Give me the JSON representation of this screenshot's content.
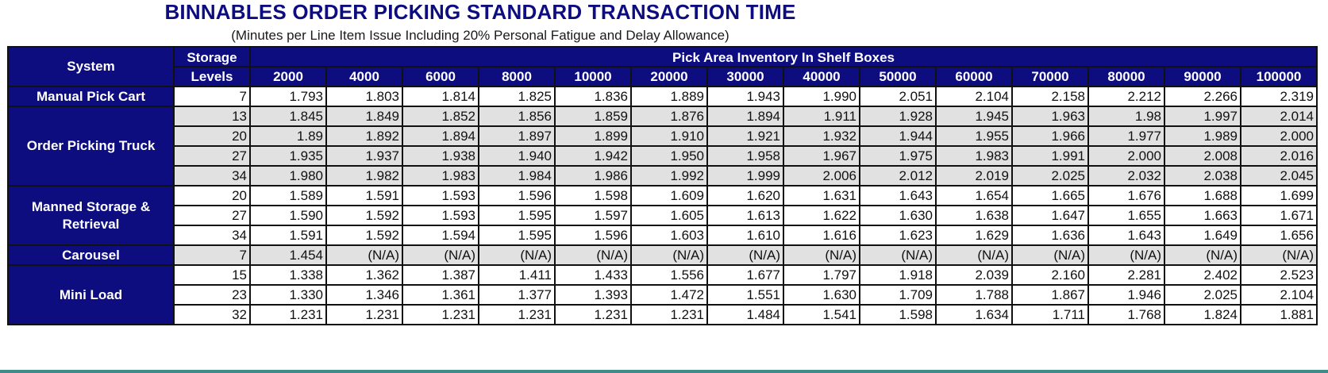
{
  "title": "BINNABLES ORDER PICKING STANDARD TRANSACTION TIME",
  "subtitle": "(Minutes per Line Item Issue Including 20% Personal Fatigue and Delay Allowance)",
  "headers": {
    "system": "System",
    "storage_levels_line1": "Storage",
    "storage_levels_line2": "Levels",
    "pick_area": "Pick Area Inventory In Shelf Boxes",
    "columns": [
      "2000",
      "4000",
      "6000",
      "8000",
      "10000",
      "20000",
      "30000",
      "40000",
      "50000",
      "60000",
      "70000",
      "80000",
      "90000",
      "100000"
    ]
  },
  "groups": [
    {
      "system": "Manual Pick Cart",
      "shade": "even",
      "rows": [
        {
          "levels": "7",
          "values": [
            "1.793",
            "1.803",
            "1.814",
            "1.825",
            "1.836",
            "1.889",
            "1.943",
            "1.990",
            "2.051",
            "2.104",
            "2.158",
            "2.212",
            "2.266",
            "2.319"
          ]
        }
      ]
    },
    {
      "system": "Order Picking Truck",
      "shade": "odd",
      "rows": [
        {
          "levels": "13",
          "values": [
            "1.845",
            "1.849",
            "1.852",
            "1.856",
            "1.859",
            "1.876",
            "1.894",
            "1.911",
            "1.928",
            "1.945",
            "1.963",
            "1.98",
            "1.997",
            "2.014"
          ]
        },
        {
          "levels": "20",
          "values": [
            "1.89",
            "1.892",
            "1.894",
            "1.897",
            "1.899",
            "1.910",
            "1.921",
            "1.932",
            "1.944",
            "1.955",
            "1.966",
            "1.977",
            "1.989",
            "2.000"
          ]
        },
        {
          "levels": "27",
          "values": [
            "1.935",
            "1.937",
            "1.938",
            "1.940",
            "1.942",
            "1.950",
            "1.958",
            "1.967",
            "1.975",
            "1.983",
            "1.991",
            "2.000",
            "2.008",
            "2.016"
          ]
        },
        {
          "levels": "34",
          "values": [
            "1.980",
            "1.982",
            "1.983",
            "1.984",
            "1.986",
            "1.992",
            "1.999",
            "2.006",
            "2.012",
            "2.019",
            "2.025",
            "2.032",
            "2.038",
            "2.045"
          ]
        }
      ]
    },
    {
      "system": "Manned Storage & Retrieval",
      "shade": "even",
      "rows": [
        {
          "levels": "20",
          "values": [
            "1.589",
            "1.591",
            "1.593",
            "1.596",
            "1.598",
            "1.609",
            "1.620",
            "1.631",
            "1.643",
            "1.654",
            "1.665",
            "1.676",
            "1.688",
            "1.699"
          ]
        },
        {
          "levels": "27",
          "values": [
            "1.590",
            "1.592",
            "1.593",
            "1.595",
            "1.597",
            "1.605",
            "1.613",
            "1.622",
            "1.630",
            "1.638",
            "1.647",
            "1.655",
            "1.663",
            "1.671"
          ]
        },
        {
          "levels": "34",
          "values": [
            "1.591",
            "1.592",
            "1.594",
            "1.595",
            "1.596",
            "1.603",
            "1.610",
            "1.616",
            "1.623",
            "1.629",
            "1.636",
            "1.643",
            "1.649",
            "1.656"
          ]
        }
      ]
    },
    {
      "system": "Carousel",
      "shade": "odd",
      "rows": [
        {
          "levels": "7",
          "values": [
            "1.454",
            "(N/A)",
            "(N/A)",
            "(N/A)",
            "(N/A)",
            "(N/A)",
            "(N/A)",
            "(N/A)",
            "(N/A)",
            "(N/A)",
            "(N/A)",
            "(N/A)",
            "(N/A)",
            "(N/A)"
          ]
        }
      ]
    },
    {
      "system": "Mini Load",
      "shade": "even",
      "rows": [
        {
          "levels": "15",
          "values": [
            "1.338",
            "1.362",
            "1.387",
            "1.411",
            "1.433",
            "1.556",
            "1.677",
            "1.797",
            "1.918",
            "2.039",
            "2.160",
            "2.281",
            "2.402",
            "2.523"
          ]
        },
        {
          "levels": "23",
          "values": [
            "1.330",
            "1.346",
            "1.361",
            "1.377",
            "1.393",
            "1.472",
            "1.551",
            "1.630",
            "1.709",
            "1.788",
            "1.867",
            "1.946",
            "2.025",
            "2.104"
          ]
        },
        {
          "levels": "32",
          "values": [
            "1.231",
            "1.231",
            "1.231",
            "1.231",
            "1.231",
            "1.231",
            "1.484",
            "1.541",
            "1.598",
            "1.634",
            "1.711",
            "1.768",
            "1.824",
            "1.881"
          ]
        }
      ]
    }
  ]
}
